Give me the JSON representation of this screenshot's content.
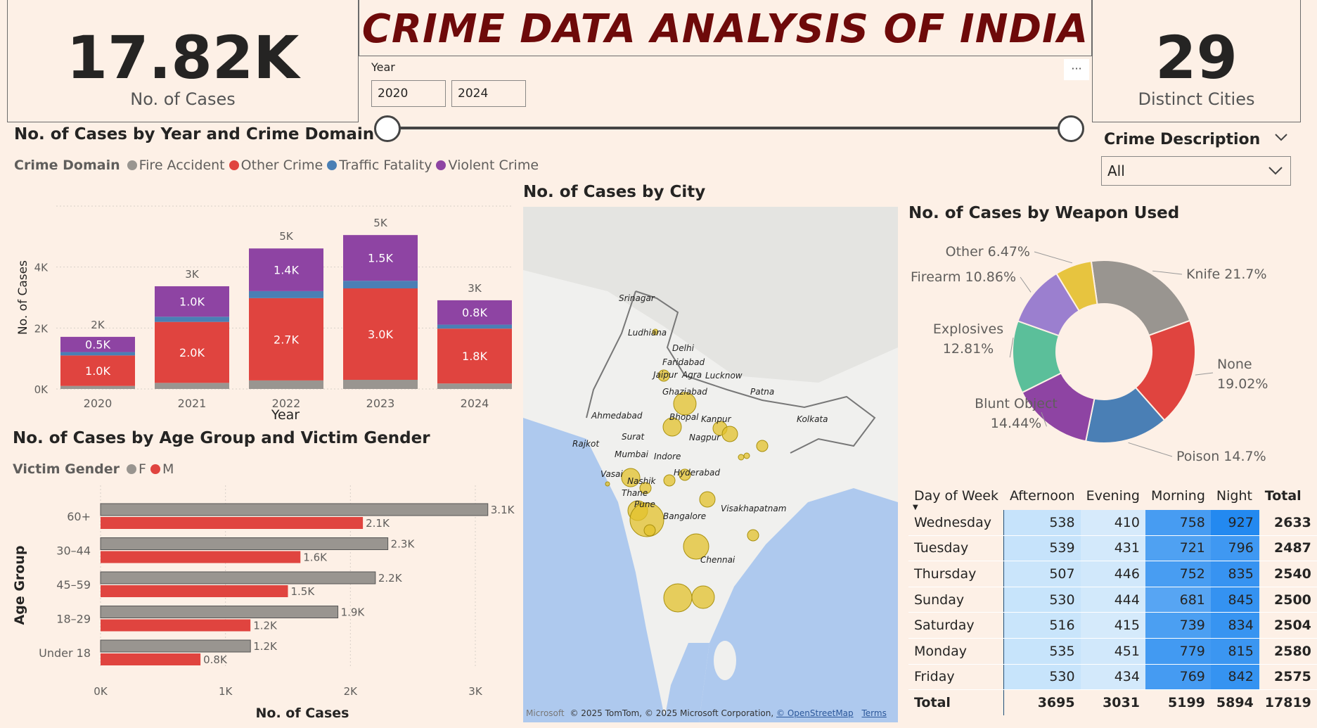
{
  "header": {
    "title": "CRIME DATA ANALYSIS OF INDIA"
  },
  "kpi_cases": {
    "value": "17.82K",
    "label": "No. of Cases"
  },
  "kpi_cities": {
    "value": "29",
    "label": "Distinct Cities"
  },
  "year_slicer": {
    "label": "Year",
    "from": "2020",
    "to": "2024",
    "range_start_fraction": 0,
    "range_end_fraction": 1,
    "more": "···"
  },
  "crime_desc_slicer": {
    "label": "Crime Description",
    "value": "All"
  },
  "colors": {
    "fire": "#999590",
    "other": "#e0443f",
    "traffic": "#4a7fb5",
    "violent": "#8e44a3",
    "female": "#999590",
    "male": "#e0443f"
  },
  "year_domain_chart": {
    "title": "No. of Cases by Year and Crime Domain",
    "legend_title": "Crime Domain",
    "legend": [
      "Fire Accident",
      "Other Crime",
      "Traffic Fatality",
      "Violent Crime"
    ],
    "chart_data": {
      "type": "bar",
      "stacked": true,
      "categories": [
        "2020",
        "2021",
        "2022",
        "2023",
        "2024"
      ],
      "series": [
        {
          "name": "Fire Accident",
          "values": [
            100,
            200,
            280,
            300,
            180
          ]
        },
        {
          "name": "Other Crime",
          "values": [
            1000,
            2000,
            2700,
            3000,
            1800
          ]
        },
        {
          "name": "Traffic Fatality",
          "values": [
            110,
            170,
            230,
            250,
            130
          ]
        },
        {
          "name": "Violent Crime",
          "values": [
            500,
            1000,
            1400,
            1500,
            800
          ]
        }
      ],
      "segment_labels": {
        "Other Crime": [
          "1.0K",
          "2.0K",
          "2.7K",
          "3.0K",
          "1.8K"
        ],
        "Violent Crime": [
          "0.5K",
          "1.0K",
          "1.4K",
          "1.5K",
          "0.8K"
        ]
      },
      "totals_labels": [
        "2K",
        "3K",
        "5K",
        "5K",
        "3K"
      ],
      "xlabel": "Year",
      "ylabel": "No. of Cases",
      "yticks": [
        "0K",
        "2K",
        "4K"
      ],
      "ylim": [
        0,
        6000
      ]
    }
  },
  "age_gender_chart": {
    "title": "No. of Cases by Age Group and Victim Gender",
    "legend_title": "Victim Gender",
    "legend": [
      "F",
      "M"
    ],
    "chart_data": {
      "type": "bar",
      "orientation": "horizontal",
      "categories": [
        "60+",
        "30–44",
        "45–59",
        "18–29",
        "Under 18"
      ],
      "series": [
        {
          "name": "F",
          "values": [
            3100,
            2300,
            2200,
            1900,
            1200
          ],
          "labels": [
            "3.1K",
            "2.3K",
            "2.2K",
            "1.9K",
            "1.2K"
          ]
        },
        {
          "name": "M",
          "values": [
            2100,
            1600,
            1500,
            1200,
            800
          ],
          "labels": [
            "2.1K",
            "1.6K",
            "1.5K",
            "1.2K",
            "0.8K"
          ]
        }
      ],
      "xlabel": "No. of Cases",
      "ylabel": "Age Group",
      "xticks": [
        "0K",
        "1K",
        "2K",
        "3K"
      ],
      "xlim": [
        0,
        3000
      ]
    }
  },
  "city_map": {
    "title": "No. of Cases by City",
    "cities": [
      "Srinagar",
      "Ludhiana",
      "Delhi",
      "Faridabad",
      "Jaipur",
      "Agra",
      "Lucknow",
      "Ghaziabad",
      "Patna",
      "Ahmedabad",
      "Bhopal",
      "Kanpur",
      "Kolkata",
      "Rajkot",
      "Surat",
      "Nagpur",
      "Mumbai",
      "Indore",
      "Vasai",
      "Nashik",
      "Hyderabad",
      "Thane",
      "Pune",
      "Visakhapatnam",
      "Bangalore",
      "Chennai"
    ],
    "attribution": "© 2025 TomTom, © 2025 Microsoft Corporation,",
    "osm": "© OpenStreetMap",
    "terms": "Terms",
    "ms_logo": "Microsoft"
  },
  "weapon_chart": {
    "title": "No. of Cases by Weapon Used",
    "chart_data": {
      "type": "pie",
      "donut": true,
      "slices": [
        {
          "name": "Knife",
          "value": 21.7,
          "label": "Knife 21.7%"
        },
        {
          "name": "None",
          "value": 19.02,
          "label1": "None",
          "label2": "19.02%"
        },
        {
          "name": "Poison",
          "value": 14.7,
          "label": "Poison 14.7%"
        },
        {
          "name": "Blunt Object",
          "value": 14.44,
          "label1": "Blunt Object",
          "label2": "14.44%"
        },
        {
          "name": "Explosives",
          "value": 12.81,
          "label1": "Explosives",
          "label2": "12.81%"
        },
        {
          "name": "Firearm",
          "value": 10.86,
          "label": "Firearm 10.86%"
        },
        {
          "name": "Other",
          "value": 6.47,
          "label": "Other 6.47%"
        }
      ],
      "colors": [
        "#999590",
        "#e0443f",
        "#4a7fb5",
        "#8e44a3",
        "#5bbf9a",
        "#9b7fcf",
        "#e7c43f"
      ]
    }
  },
  "day_matrix": {
    "headers": [
      "Day of Week",
      "Afternoon",
      "Evening",
      "Morning",
      "Night",
      "Total"
    ],
    "rows": [
      {
        "day": "Wednesday",
        "values": [
          538,
          410,
          758,
          927
        ],
        "total": 2633
      },
      {
        "day": "Tuesday",
        "values": [
          539,
          431,
          721,
          796
        ],
        "total": 2487
      },
      {
        "day": "Thursday",
        "values": [
          507,
          446,
          752,
          835
        ],
        "total": 2540
      },
      {
        "day": "Sunday",
        "values": [
          530,
          444,
          681,
          845
        ],
        "total": 2500
      },
      {
        "day": "Saturday",
        "values": [
          516,
          415,
          739,
          834
        ],
        "total": 2504
      },
      {
        "day": "Monday",
        "values": [
          535,
          451,
          779,
          815
        ],
        "total": 2580
      },
      {
        "day": "Friday",
        "values": [
          530,
          434,
          769,
          842
        ],
        "total": 2575
      }
    ],
    "total_row": {
      "day": "Total",
      "values": [
        3695,
        3031,
        5199,
        5894
      ],
      "total": 17819
    }
  }
}
